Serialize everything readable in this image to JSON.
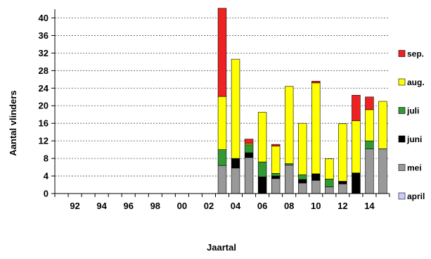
{
  "chart_data": {
    "type": "bar",
    "stacked": true,
    "xlabel": "Jaartal",
    "ylabel": "Aantal vlinders",
    "ylim": [
      0,
      42
    ],
    "yticks": [
      0,
      4,
      8,
      12,
      16,
      20,
      24,
      28,
      32,
      36,
      40
    ],
    "grid": "horizontal dashed",
    "legend_position": "right",
    "categories": [
      "1991",
      "1992",
      "1993",
      "1994",
      "1995",
      "1996",
      "1997",
      "1998",
      "1999",
      "2000",
      "2001",
      "2002",
      "2003",
      "2004",
      "2005",
      "2006",
      "2007",
      "2008",
      "2009",
      "2010",
      "2011",
      "2012",
      "2013",
      "2014",
      "2015"
    ],
    "xtick_labels": [
      {
        "category": "1992",
        "label": "92"
      },
      {
        "category": "1994",
        "label": "94"
      },
      {
        "category": "1996",
        "label": "96"
      },
      {
        "category": "1998",
        "label": "98"
      },
      {
        "category": "2000",
        "label": "00"
      },
      {
        "category": "2002",
        "label": "02"
      },
      {
        "category": "2004",
        "label": "04"
      },
      {
        "category": "2006",
        "label": "06"
      },
      {
        "category": "2008",
        "label": "08"
      },
      {
        "category": "2010",
        "label": "10"
      },
      {
        "category": "2012",
        "label": "12"
      },
      {
        "category": "2014",
        "label": "14"
      }
    ],
    "series": [
      {
        "name": "april",
        "color": "#ccccff",
        "values": [
          0,
          0,
          0,
          0,
          0,
          0,
          0,
          0,
          0,
          0,
          0,
          0,
          0,
          0,
          0,
          0,
          0,
          0,
          0,
          0,
          0,
          0,
          0,
          0,
          0
        ]
      },
      {
        "name": "mei",
        "color": "#999999",
        "values": [
          0,
          0,
          0,
          0,
          0,
          0,
          0,
          0,
          0,
          0,
          0,
          0,
          6.4,
          5.8,
          8.2,
          0,
          3.4,
          6.5,
          2.4,
          3,
          1.5,
          2.2,
          0,
          10.2,
          10.2
        ]
      },
      {
        "name": "juni",
        "color": "#000000",
        "values": [
          0,
          0,
          0,
          0,
          0,
          0,
          0,
          0,
          0,
          0,
          0,
          0,
          0,
          2.2,
          1.1,
          3.8,
          0.6,
          0,
          0.8,
          1.5,
          0,
          0.6,
          4.7,
          0,
          0
        ]
      },
      {
        "name": "juli",
        "color": "#339933",
        "values": [
          0,
          0,
          0,
          0,
          0,
          0,
          0,
          0,
          0,
          0,
          0,
          0,
          3.6,
          0,
          1.8,
          3.4,
          0.6,
          0.3,
          1.1,
          0,
          1.8,
          0,
          0,
          1.8,
          0
        ]
      },
      {
        "name": "aug.",
        "color": "#ffff00",
        "values": [
          0,
          0,
          0,
          0,
          0,
          0,
          0,
          0,
          0,
          0,
          0,
          0,
          12.1,
          22.6,
          0.3,
          11.3,
          6.2,
          17.6,
          11.7,
          20.7,
          4.6,
          13.1,
          11.9,
          7.1,
          10.8
        ]
      },
      {
        "name": "sep.",
        "color": "#ee2222",
        "values": [
          0,
          0,
          0,
          0,
          0,
          0,
          0,
          0,
          0,
          0,
          0,
          0,
          20.1,
          0,
          1,
          0,
          0.4,
          0,
          0,
          0.4,
          0,
          0,
          5.8,
          2.9,
          0
        ]
      }
    ]
  }
}
